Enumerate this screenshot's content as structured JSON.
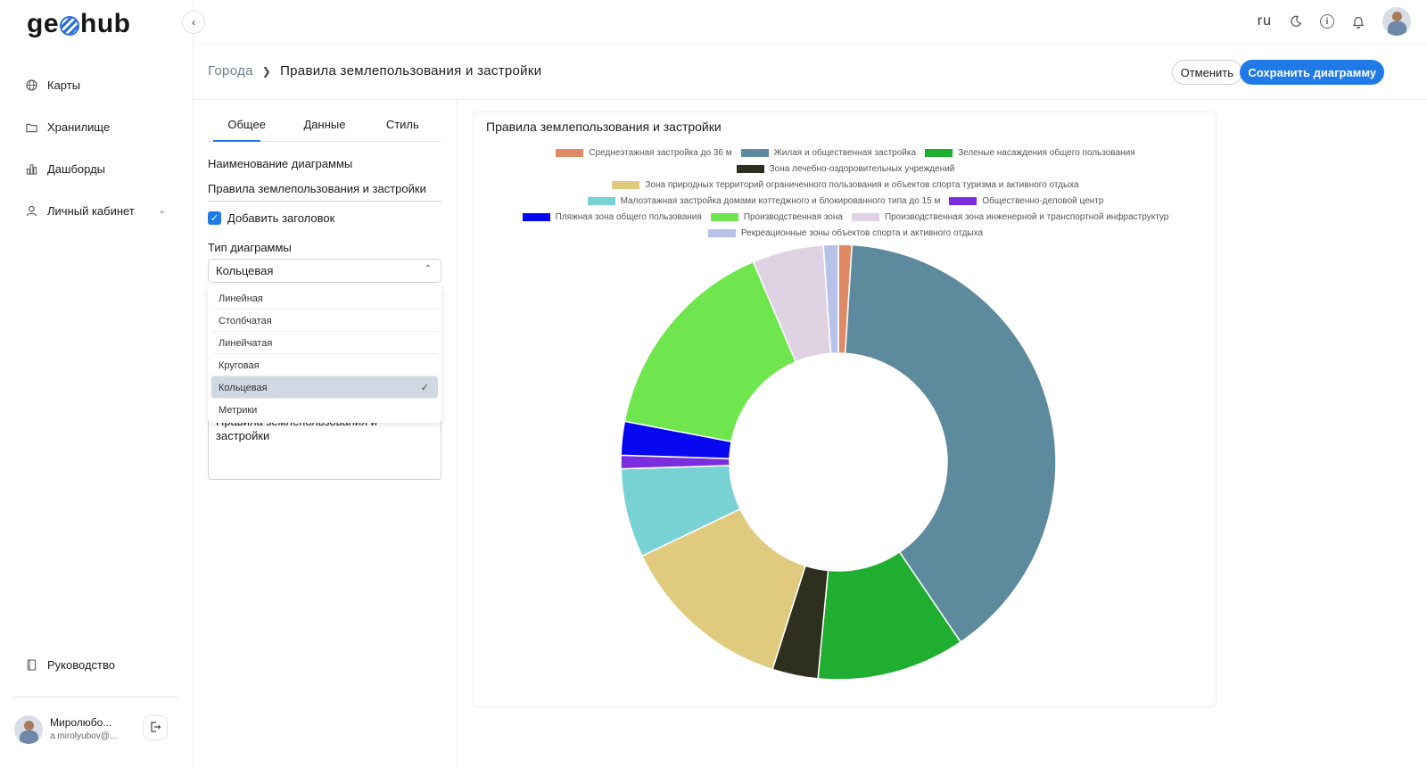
{
  "app": {
    "logo_left": "ge",
    "logo_right": "hub"
  },
  "sidebar": {
    "items": [
      {
        "label": "Карты",
        "icon": "globe-icon"
      },
      {
        "label": "Хранилище",
        "icon": "folder-icon"
      },
      {
        "label": "Дашборды",
        "icon": "bar-chart-icon"
      },
      {
        "label": "Личный кабинет",
        "icon": "user-icon"
      }
    ],
    "guide": {
      "label": "Руководство",
      "icon": "book-icon"
    },
    "user": {
      "name": "Миролюбо...",
      "email": "a.mirolyubov@..."
    }
  },
  "topbar": {
    "lang": "ru"
  },
  "header": {
    "breadcrumb_parent": "Города",
    "breadcrumb_current": "Правила землепользования и застройки",
    "cancel_label": "Отменить",
    "save_label": "Сохранить диаграмму"
  },
  "settings": {
    "tabs": [
      "Общее",
      "Данные",
      "Стиль"
    ],
    "name_label": "Наименование диаграммы",
    "name_value": "Правила землепользования и застройки",
    "add_title_label": "Добавить заголовок",
    "type_label": "Тип диаграммы",
    "type_value": "Кольцевая",
    "type_options": [
      "Линейная",
      "Столбчатая",
      "Линейчатая",
      "Круговая",
      "Кольцевая",
      "Метрики"
    ],
    "title_text": "Правила землепользования и застройки"
  },
  "chart_data": {
    "type": "pie",
    "variant": "doughnut",
    "title": "Правила землепользования и застройки",
    "legend_position": "top",
    "series": [
      {
        "name": "Среднеэтажная застройка до 36 м",
        "value": 1.0,
        "color": "#de8a64"
      },
      {
        "name": "Жилая и общественная застройка",
        "value": 39.5,
        "color": "#5e8a9e"
      },
      {
        "name": "Зеленые насаждения общего пользования",
        "value": 11.0,
        "color": "#1fae2f"
      },
      {
        "name": "Зона лечебно-оздоровительных учреждений",
        "value": 3.4,
        "color": "#2f2f1f"
      },
      {
        "name": "Зона природных территорий ограниченного пользования и объектов спорта туризма и активного отдыха",
        "value": 13.0,
        "color": "#e0ca7d"
      },
      {
        "name": "Малоэтажная застройка домами коттеджного и блокированного типа до 15 м",
        "value": 6.6,
        "color": "#78d2d4"
      },
      {
        "name": "Общественно-деловой центр",
        "value": 1.0,
        "color": "#7a2ee0"
      },
      {
        "name": "Пляжная зона общего пользования",
        "value": 2.5,
        "color": "#0707f0"
      },
      {
        "name": "Производственная зона",
        "value": 15.6,
        "color": "#70e64e"
      },
      {
        "name": "Производственная зона инженерной и транспортной инфраструктур",
        "value": 5.3,
        "color": "#dfd3e3"
      },
      {
        "name": "Рекреационные зоны объектов спорта и активного отдыха",
        "value": 1.1,
        "color": "#b8c2e8"
      }
    ]
  }
}
